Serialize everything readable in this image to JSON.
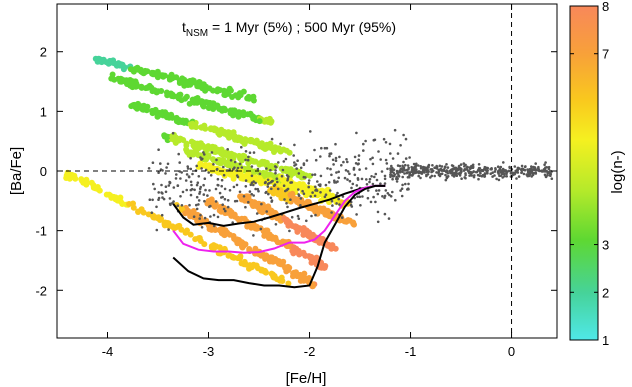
{
  "chart_data": {
    "type": "scatter",
    "title": {
      "main": "t",
      "subscript": "NSM",
      "rest": " = 1 Myr (5%) ; 500 Myr (95%)"
    },
    "xlabel": "[Fe/H]",
    "ylabel": "[Ba/Fe]",
    "xlim": [
      -4.5,
      0.45
    ],
    "ylim": [
      -2.8,
      2.8
    ],
    "xticks": [
      -4,
      -3,
      -2,
      -1,
      0
    ],
    "yticks": [
      -2,
      -1,
      0,
      1,
      2
    ],
    "xtick_labels": [
      "-4",
      "-3",
      "-2",
      "-1",
      "0"
    ],
    "ytick_labels": [
      "-2",
      "-1",
      "0",
      "1",
      "2"
    ],
    "reference_lines": {
      "x": 0,
      "y": 0,
      "style": "dashed"
    },
    "colorbar": {
      "label": "log(n-)",
      "ticks": [
        1,
        2,
        3,
        7,
        8
      ],
      "tick_labels": [
        "1",
        "2",
        "3",
        "7",
        "8"
      ],
      "range": [
        1,
        8
      ],
      "colors": [
        "#4fe8e8",
        "#46d39a",
        "#5ed832",
        "#b6ea2a",
        "#f5f020",
        "#f9c81e",
        "#f8a03a",
        "#f8885a"
      ]
    },
    "series": [
      {
        "style": "line",
        "color": "#000000",
        "x": [
          -3.35,
          -3.25,
          -3.15,
          -3.0,
          -2.85,
          -2.7,
          -2.55,
          -2.4,
          -2.25,
          -2.1,
          -1.95,
          -1.8,
          -1.65,
          -1.5,
          -1.35,
          -1.25
        ],
        "y": [
          -0.55,
          -0.78,
          -0.9,
          -0.87,
          -0.92,
          -0.88,
          -0.85,
          -0.78,
          -0.7,
          -0.62,
          -0.55,
          -0.48,
          -0.38,
          -0.3,
          -0.25,
          -0.25
        ]
      },
      {
        "style": "line",
        "color": "#ee22ee",
        "x": [
          -3.35,
          -3.25,
          -3.1,
          -2.95,
          -2.8,
          -2.65,
          -2.5,
          -2.35,
          -2.2,
          -2.05,
          -1.95,
          -1.85,
          -1.75,
          -1.65,
          -1.55,
          -1.45,
          -1.35,
          -1.25
        ],
        "y": [
          -1.0,
          -1.22,
          -1.32,
          -1.35,
          -1.35,
          -1.37,
          -1.36,
          -1.3,
          -1.2,
          -1.2,
          -1.15,
          -1.0,
          -0.75,
          -0.5,
          -0.35,
          -0.28,
          -0.25,
          -0.25
        ]
      },
      {
        "style": "line",
        "color": "#000000",
        "x": [
          -3.35,
          -3.2,
          -3.05,
          -2.9,
          -2.75,
          -2.6,
          -2.45,
          -2.3,
          -2.15,
          -2.0,
          -1.92,
          -1.85,
          -1.75,
          -1.65,
          -1.55,
          -1.45,
          -1.35,
          -1.25
        ],
        "y": [
          -1.45,
          -1.68,
          -1.8,
          -1.83,
          -1.83,
          -1.88,
          -1.92,
          -1.92,
          -1.95,
          -1.92,
          -1.6,
          -1.2,
          -0.9,
          -0.6,
          -0.4,
          -0.3,
          -0.25,
          -0.25
        ]
      }
    ]
  }
}
